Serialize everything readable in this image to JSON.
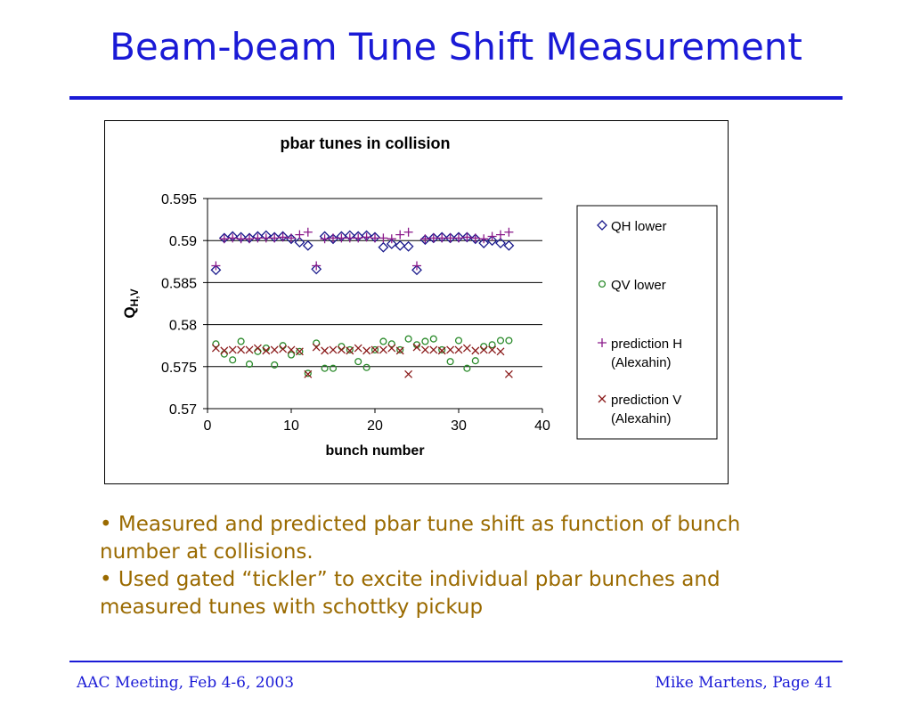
{
  "slide": {
    "title": "Beam-beam Tune Shift Measurement",
    "bullets": [
      "• Measured and predicted pbar tune shift as function of bunch number at collisions.",
      "• Used gated “tickler” to excite individual pbar bunches and measured tunes with schottky pickup"
    ],
    "footer_left": "AAC Meeting, Feb 4-6, 2003",
    "footer_right": "Mike Martens, Page 41",
    "title_color": "#1a1ad6",
    "bullet_color": "#9a6a00"
  },
  "chart_data": {
    "type": "scatter",
    "title": "pbar tunes in collision",
    "xlabel": "bunch number",
    "ylabel": "Q",
    "ylabel_sub": "H,V",
    "xlim": [
      0,
      40
    ],
    "ylim": [
      0.57,
      0.595
    ],
    "xticks": [
      "0",
      "10",
      "20",
      "30",
      "40"
    ],
    "yticks": [
      "0.57",
      "0.575",
      "0.58",
      "0.585",
      "0.59",
      "0.595"
    ],
    "grid": "horizontal",
    "legend_position": "right",
    "series": [
      {
        "name": "QH lower",
        "marker": "diamond",
        "color": "#1a1a8c",
        "points": [
          [
            1,
            0.5865
          ],
          [
            2,
            0.5903
          ],
          [
            3,
            0.5905
          ],
          [
            4,
            0.5904
          ],
          [
            5,
            0.5903
          ],
          [
            6,
            0.5905
          ],
          [
            7,
            0.5906
          ],
          [
            8,
            0.5904
          ],
          [
            9,
            0.5905
          ],
          [
            10,
            0.5902
          ],
          [
            11,
            0.5898
          ],
          [
            12,
            0.5894
          ],
          [
            13,
            0.5866
          ],
          [
            14,
            0.5905
          ],
          [
            15,
            0.5902
          ],
          [
            16,
            0.5905
          ],
          [
            17,
            0.5906
          ],
          [
            18,
            0.5905
          ],
          [
            19,
            0.5906
          ],
          [
            20,
            0.5904
          ],
          [
            21,
            0.5892
          ],
          [
            22,
            0.5896
          ],
          [
            23,
            0.5894
          ],
          [
            24,
            0.5893
          ],
          [
            25,
            0.5865
          ],
          [
            26,
            0.5901
          ],
          [
            27,
            0.5903
          ],
          [
            28,
            0.5904
          ],
          [
            29,
            0.5903
          ],
          [
            30,
            0.5904
          ],
          [
            31,
            0.5904
          ],
          [
            32,
            0.5902
          ],
          [
            33,
            0.5897
          ],
          [
            34,
            0.59
          ],
          [
            35,
            0.5897
          ],
          [
            36,
            0.5894
          ]
        ]
      },
      {
        "name": "QV lower",
        "marker": "circle",
        "color": "#2a8a2a",
        "points": [
          [
            1,
            0.5777
          ],
          [
            2,
            0.5765
          ],
          [
            3,
            0.5758
          ],
          [
            4,
            0.578
          ],
          [
            5,
            0.5753
          ],
          [
            6,
            0.5768
          ],
          [
            7,
            0.5772
          ],
          [
            8,
            0.5752
          ],
          [
            9,
            0.5775
          ],
          [
            10,
            0.5764
          ],
          [
            11,
            0.5768
          ],
          [
            12,
            0.5742
          ],
          [
            13,
            0.5778
          ],
          [
            14,
            0.5748
          ],
          [
            15,
            0.5748
          ],
          [
            16,
            0.5774
          ],
          [
            17,
            0.577
          ],
          [
            18,
            0.5756
          ],
          [
            19,
            0.5749
          ],
          [
            20,
            0.577
          ],
          [
            21,
            0.578
          ],
          [
            22,
            0.5777
          ],
          [
            23,
            0.577
          ],
          [
            24,
            0.5783
          ],
          [
            25,
            0.5776
          ],
          [
            26,
            0.578
          ],
          [
            27,
            0.5783
          ],
          [
            28,
            0.577
          ],
          [
            29,
            0.5756
          ],
          [
            30,
            0.5781
          ],
          [
            31,
            0.5748
          ],
          [
            32,
            0.5757
          ],
          [
            33,
            0.5774
          ],
          [
            34,
            0.5776
          ],
          [
            35,
            0.5781
          ],
          [
            36,
            0.5781
          ]
        ]
      },
      {
        "name": "prediction H\n(Alexahin)",
        "marker": "plus",
        "color": "#8a1a8a",
        "points": [
          [
            1,
            0.587
          ],
          [
            2,
            0.5902
          ],
          [
            3,
            0.5903
          ],
          [
            4,
            0.5902
          ],
          [
            5,
            0.5902
          ],
          [
            6,
            0.5903
          ],
          [
            7,
            0.5903
          ],
          [
            8,
            0.5903
          ],
          [
            9,
            0.5904
          ],
          [
            10,
            0.5903
          ],
          [
            11,
            0.5907
          ],
          [
            12,
            0.591
          ],
          [
            13,
            0.587
          ],
          [
            14,
            0.5902
          ],
          [
            15,
            0.5903
          ],
          [
            16,
            0.5903
          ],
          [
            17,
            0.5903
          ],
          [
            18,
            0.5903
          ],
          [
            19,
            0.5904
          ],
          [
            20,
            0.5903
          ],
          [
            21,
            0.5903
          ],
          [
            22,
            0.5902
          ],
          [
            23,
            0.5907
          ],
          [
            24,
            0.591
          ],
          [
            25,
            0.587
          ],
          [
            26,
            0.5902
          ],
          [
            27,
            0.5903
          ],
          [
            28,
            0.5903
          ],
          [
            29,
            0.5903
          ],
          [
            30,
            0.5903
          ],
          [
            31,
            0.5904
          ],
          [
            32,
            0.5903
          ],
          [
            33,
            0.5902
          ],
          [
            34,
            0.5905
          ],
          [
            35,
            0.5907
          ],
          [
            36,
            0.591
          ]
        ]
      },
      {
        "name": "prediction V\n(Alexahin)",
        "marker": "x",
        "color": "#8a1a1a",
        "points": [
          [
            1,
            0.5772
          ],
          [
            2,
            0.5769
          ],
          [
            3,
            0.577
          ],
          [
            4,
            0.577
          ],
          [
            5,
            0.577
          ],
          [
            6,
            0.5772
          ],
          [
            7,
            0.5769
          ],
          [
            8,
            0.577
          ],
          [
            9,
            0.5771
          ],
          [
            10,
            0.577
          ],
          [
            11,
            0.5768
          ],
          [
            12,
            0.5741
          ],
          [
            13,
            0.5773
          ],
          [
            14,
            0.5769
          ],
          [
            15,
            0.577
          ],
          [
            16,
            0.577
          ],
          [
            17,
            0.5769
          ],
          [
            18,
            0.5772
          ],
          [
            19,
            0.5769
          ],
          [
            20,
            0.577
          ],
          [
            21,
            0.577
          ],
          [
            22,
            0.5772
          ],
          [
            23,
            0.5769
          ],
          [
            24,
            0.5741
          ],
          [
            25,
            0.5773
          ],
          [
            26,
            0.577
          ],
          [
            27,
            0.577
          ],
          [
            28,
            0.5769
          ],
          [
            29,
            0.577
          ],
          [
            30,
            0.577
          ],
          [
            31,
            0.5772
          ],
          [
            32,
            0.5769
          ],
          [
            33,
            0.577
          ],
          [
            34,
            0.577
          ],
          [
            35,
            0.5768
          ],
          [
            36,
            0.5741
          ]
        ]
      }
    ]
  }
}
